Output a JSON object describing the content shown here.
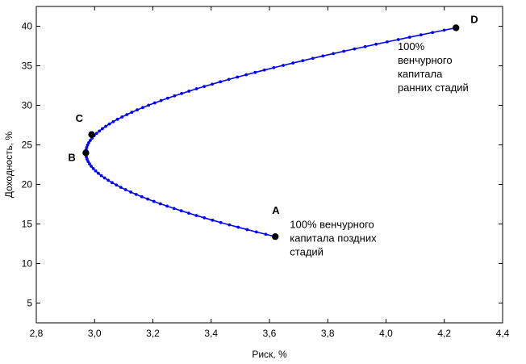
{
  "chart_data": {
    "type": "line",
    "title": "",
    "xlabel": "Риск, %",
    "ylabel": "Доходность, %",
    "xlim": [
      2.8,
      4.4
    ],
    "ylim": [
      2.5,
      42.5
    ],
    "x_ticks": [
      "2,8",
      "3,0",
      "3,2",
      "3,4",
      "3,6",
      "3,8",
      "4,0",
      "4,2",
      "4,4"
    ],
    "x_tick_values": [
      2.8,
      3.0,
      3.2,
      3.4,
      3.6,
      3.8,
      4.0,
      4.2,
      4.4
    ],
    "y_ticks": [
      "5",
      "10",
      "15",
      "20",
      "25",
      "30",
      "35",
      "40"
    ],
    "y_tick_values": [
      5,
      10,
      15,
      20,
      25,
      30,
      35,
      40
    ],
    "grid": false,
    "series_color": "#0000ff",
    "marker_color": "#000000",
    "curve": {
      "y_start": 13.4,
      "y_end": 39.8,
      "n_points": 90
    },
    "key_points": [
      {
        "label": "A",
        "x": 3.62,
        "y": 13.4
      },
      {
        "label": "B",
        "x": 2.97,
        "y": 24.0
      },
      {
        "label": "C",
        "x": 2.99,
        "y": 26.3
      },
      {
        "label": "D",
        "x": 4.24,
        "y": 39.8
      }
    ],
    "annotations": [
      {
        "lines": [
          "100%",
          "венчурного",
          "капитала",
          "ранних стадий"
        ],
        "x": 4.04,
        "y": 37.0
      },
      {
        "lines": [
          "100% венчурного",
          "капитала поздних",
          "стадий"
        ],
        "x": 3.67,
        "y": 14.5
      }
    ]
  }
}
